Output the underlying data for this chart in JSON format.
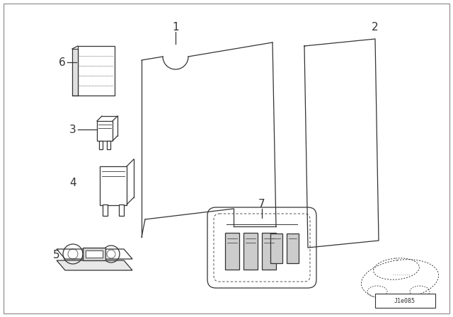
{
  "bg_color": "#ffffff",
  "line_color": "#333333",
  "diagram_id": "J1e085",
  "label_fontsize": 10,
  "border_color": "#aaaaaa"
}
